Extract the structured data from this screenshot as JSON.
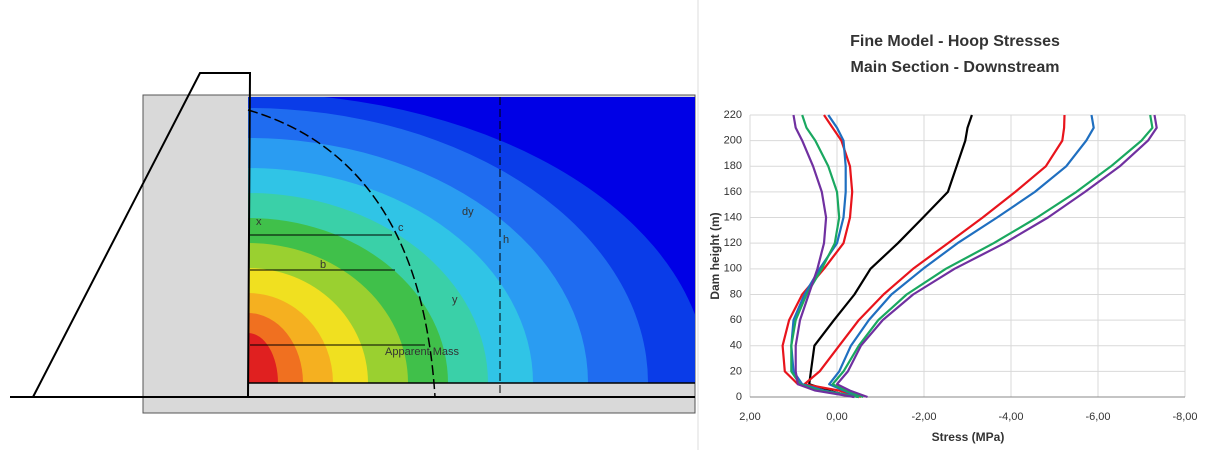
{
  "diagram": {
    "labels": [
      "Apparent Mass",
      "b",
      "c",
      "x",
      "dy",
      "y",
      "h"
    ]
  },
  "chart_data": {
    "type": "line",
    "title": [
      "Fine Model - Hoop Stresses",
      "Main Section - Downstream"
    ],
    "x_label": "Stress (MPa)",
    "y_label": "Dam height (m)",
    "heights": [
      0,
      5,
      10,
      20,
      40,
      60,
      80,
      100,
      120,
      140,
      160,
      180,
      200,
      210,
      220
    ],
    "series": [
      {
        "color": "#000000",
        "values": [
          -0.4,
          0.2,
          0.64,
          0.6,
          0.52,
          0.07,
          -0.4,
          -0.77,
          -1.4,
          -1.98,
          -2.55,
          -2.75,
          -2.95,
          -3.0,
          -3.1
        ]
      },
      {
        "color": "#e8141c",
        "values": [
          -0.55,
          -0.05,
          0.75,
          0.4,
          -0.05,
          -0.5,
          -1.07,
          -1.75,
          -2.55,
          -3.35,
          -4.1,
          -4.8,
          -5.18,
          -5.22,
          -5.23
        ]
      },
      {
        "color": "#1f6fc0",
        "values": [
          -0.5,
          -0.16,
          0.18,
          -0.05,
          -0.32,
          -0.73,
          -1.25,
          -1.98,
          -2.77,
          -3.68,
          -4.55,
          -5.27,
          -5.73,
          -5.9,
          -5.85
        ]
      },
      {
        "color": "#1aa860",
        "values": [
          -0.6,
          -0.2,
          0.1,
          -0.15,
          -0.5,
          -0.95,
          -1.6,
          -2.5,
          -3.6,
          -4.6,
          -5.5,
          -6.3,
          -7.0,
          -7.25,
          -7.2
        ]
      },
      {
        "color": "#7030a0",
        "values": [
          -0.7,
          -0.3,
          0.0,
          -0.25,
          -0.55,
          -1.05,
          -1.75,
          -2.7,
          -3.85,
          -4.85,
          -5.7,
          -6.5,
          -7.15,
          -7.35,
          -7.3
        ]
      },
      {
        "color": "#e8141c",
        "values": [
          -0.5,
          0.3,
          0.9,
          1.2,
          1.25,
          1.1,
          0.8,
          0.3,
          -0.15,
          -0.3,
          -0.35,
          -0.3,
          -0.1,
          0.1,
          0.3
        ]
      },
      {
        "color": "#1f6fc0",
        "values": [
          -0.5,
          0.3,
          0.8,
          1.0,
          1.05,
          1.0,
          0.75,
          0.4,
          0.0,
          -0.15,
          -0.2,
          -0.2,
          -0.15,
          0.0,
          0.2
        ]
      },
      {
        "color": "#1aa860",
        "values": [
          -0.5,
          0.4,
          0.85,
          1.05,
          1.05,
          0.95,
          0.7,
          0.35,
          0.05,
          -0.05,
          0.0,
          0.2,
          0.5,
          0.7,
          0.8
        ]
      },
      {
        "color": "#7030a0",
        "values": [
          -0.4,
          0.5,
          0.9,
          0.95,
          0.95,
          0.85,
          0.65,
          0.45,
          0.3,
          0.25,
          0.35,
          0.55,
          0.8,
          0.95,
          1.0
        ]
      }
    ],
    "xlim": [
      2,
      -8
    ],
    "ylim": [
      0,
      220
    ],
    "xticks": [
      {
        "value": 2,
        "label": "2,00"
      },
      {
        "value": 0,
        "label": "0,00"
      },
      {
        "value": -2,
        "label": "-2,00"
      },
      {
        "value": -4,
        "label": "-4,00"
      },
      {
        "value": -6,
        "label": "-6,00"
      },
      {
        "value": -8,
        "label": "-8,00"
      }
    ],
    "yticks": [
      0,
      20,
      40,
      60,
      80,
      100,
      120,
      140,
      160,
      180,
      200,
      220
    ],
    "grid": true
  }
}
